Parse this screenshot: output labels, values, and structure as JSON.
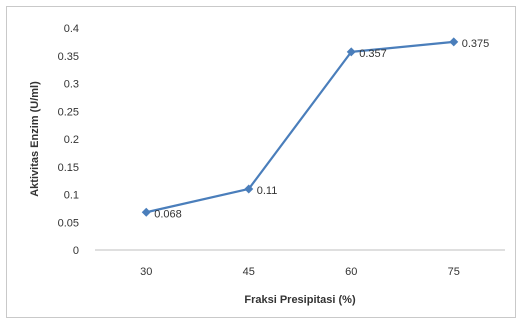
{
  "chart_data": {
    "type": "line",
    "title": "",
    "xlabel": "Fraksi Presipitasi (%)",
    "ylabel": "Aktivitas Enzim (U/ml)",
    "categories": [
      "30",
      "45",
      "60",
      "75"
    ],
    "series": [
      {
        "values": [
          0.068,
          0.11,
          0.357,
          0.375
        ],
        "data_labels": [
          "0.068",
          "0.11",
          "0.357",
          "0.375"
        ],
        "color": "#4A7EBB",
        "marker": "diamond"
      }
    ],
    "ylim": [
      0,
      0.4
    ],
    "yticks": [
      "0",
      "0.05",
      "0.1",
      "0.15",
      "0.2",
      "0.25",
      "0.3",
      "0.35",
      "0.4"
    ],
    "grid": false,
    "legend": "none"
  }
}
